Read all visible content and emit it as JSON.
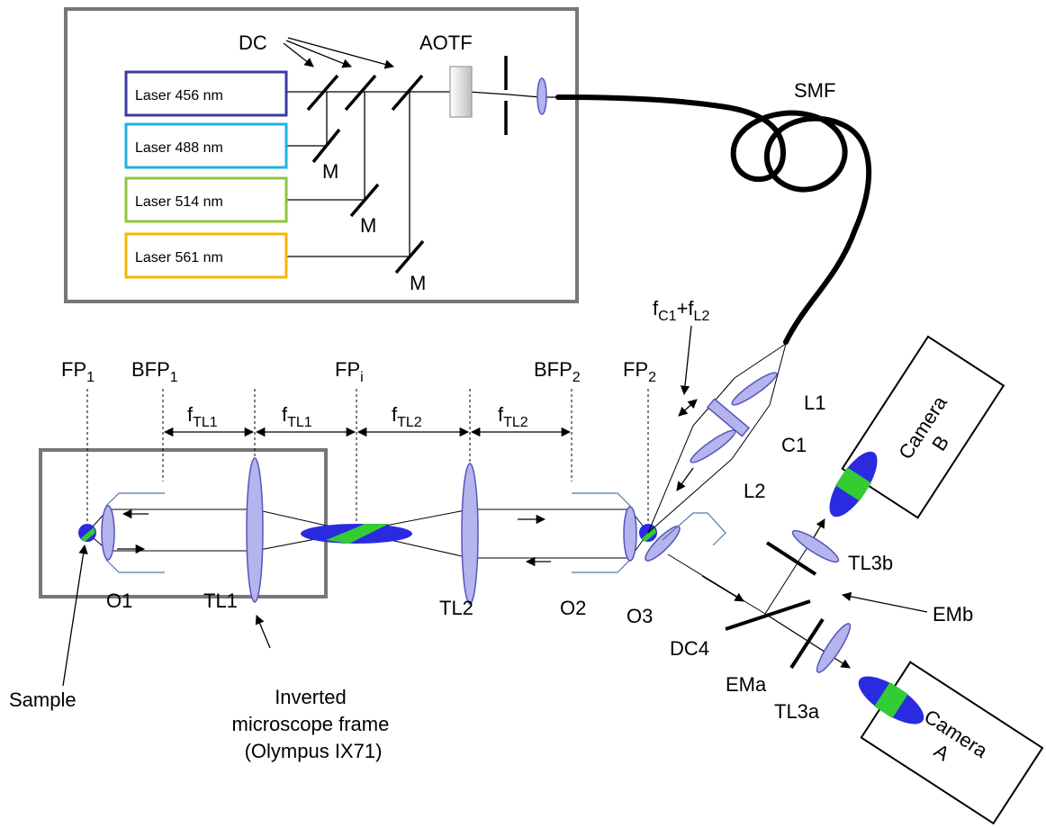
{
  "colors": {
    "laser_456": "#3b3ba3",
    "laser_488": "#1fb3e0",
    "laser_514": "#8dc63f",
    "laser_561": "#f5b800",
    "lens_fill": "#b4b4ee",
    "lens_stroke": "#5555bb",
    "frame_stroke": "#777777",
    "dye_blue": "#2a2ae0",
    "dye_green": "#33cc33"
  },
  "lasers": [
    "Laser 456 nm",
    "Laser 488 nm",
    "Laser 514 nm",
    "Laser 561 nm"
  ],
  "labels": {
    "dc": "DC",
    "aotf": "AOTF",
    "smf": "SMF",
    "mirror": "M",
    "fc1_base": "f",
    "fc1_sub": "C1",
    "fc1_plus": "+f",
    "fl2_sub": "L2",
    "fp1_base": "FP",
    "fp1_sub": "1",
    "bfp1_base": "BFP",
    "bfp1_sub": "1",
    "fpi_base": "FP",
    "fpi_sub": "i",
    "bfp2_base": "BFP",
    "bfp2_sub": "2",
    "fp2_base": "FP",
    "fp2_sub": "2",
    "ftl_base": "f",
    "ftl1_sub": "TL1",
    "ftl2_sub": "TL2",
    "l1": "L1",
    "c1": "C1",
    "l2": "L2",
    "o1": "O1",
    "tl1": "TL1",
    "tl2": "TL2",
    "o2": "O2",
    "o3": "O3",
    "dc4": "DC4",
    "tl3b": "TL3b",
    "emb": "EMb",
    "ema": "EMa",
    "tl3a": "TL3a",
    "sample": "Sample",
    "frame_line1": "Inverted",
    "frame_line2": "microscope frame",
    "frame_line3": "(Olympus IX71)",
    "camera_b_line1": "Camera",
    "camera_b_line2": "B",
    "camera_a_line1": "Camera",
    "camera_a_line2": "A"
  }
}
